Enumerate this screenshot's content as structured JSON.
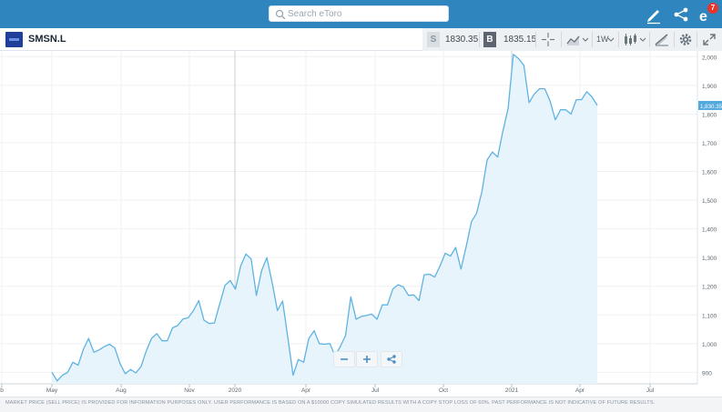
{
  "header": {
    "search_placeholder": "Search eToro",
    "icons": [
      "search-icon",
      "edit-icon",
      "share-icon",
      "notifications-icon"
    ],
    "notification_count": "7",
    "bar_color": "#2f86bf"
  },
  "toolbar": {
    "symbol": "SMSN.L",
    "sell_label": "S",
    "sell_price": "1830.35",
    "buy_label": "B",
    "buy_price": "1835.15",
    "timeframe": "1W"
  },
  "chart_data": {
    "type": "area",
    "line_color": "#5fb3e0",
    "fill_color": "#e8f4fc",
    "x_tick_labels": [
      "b",
      "May",
      "Aug",
      "Nov",
      "2020",
      "Apr",
      "Jul",
      "Oct",
      "2021",
      "Apr",
      "Jul"
    ],
    "y_tick_labels": [
      "900",
      "1,000",
      "1,100",
      "1,200",
      "1,300",
      "1,400",
      "1,500",
      "1,600",
      "1,700",
      "1,800",
      "1,900",
      "2,000"
    ],
    "ylim": [
      860,
      2020
    ],
    "current_price_label": "1,830.35",
    "grid": true,
    "series": [
      {
        "values": [
          900,
          870,
          890,
          900,
          935,
          925,
          980,
          1018,
          970,
          978,
          990,
          998,
          985,
          930,
          895,
          910,
          898,
          920,
          975,
          1018,
          1035,
          1010,
          1010,
          1055,
          1063,
          1086,
          1090,
          1115,
          1150,
          1082,
          1070,
          1072,
          1138,
          1203,
          1220,
          1190,
          1270,
          1312,
          1295,
          1168,
          1255,
          1300,
          1213,
          1115,
          1148,
          1020,
          890,
          945,
          935,
          1018,
          1045,
          1000,
          998,
          1000,
          958,
          990,
          1028,
          1163,
          1085,
          1095,
          1098,
          1103,
          1085,
          1135,
          1135,
          1190,
          1205,
          1198,
          1168,
          1170,
          1150,
          1240,
          1242,
          1232,
          1270,
          1315,
          1305,
          1335,
          1260,
          1338,
          1425,
          1455,
          1530,
          1640,
          1668,
          1650,
          1740,
          1820,
          2008,
          1993,
          1970,
          1840,
          1870,
          1888,
          1888,
          1845,
          1780,
          1815,
          1815,
          1800,
          1850,
          1850,
          1878,
          1860,
          1830
        ]
      }
    ]
  },
  "zoom_controls": {
    "icons": [
      "zoom-out-icon",
      "zoom-in-icon",
      "chart-share-icon"
    ]
  },
  "footer": {
    "disclaimer": "MARKET PRICE (SELL PRICE) IS PROVIDED FOR INFORMATION PURPOSES ONLY. USER PERFORMANCE IS BASED ON A $10000 COPY SIMULATED RESULTS WITH A COPY STOP LOSS OF 60%. PAST PERFORMANCE IS NOT INDICATIVE OF FUTURE RESULTS."
  }
}
